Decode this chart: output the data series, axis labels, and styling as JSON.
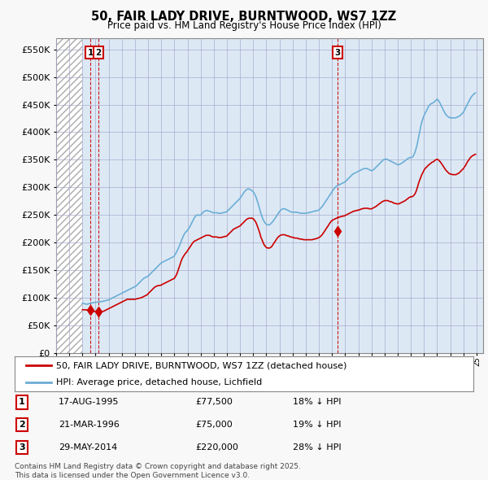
{
  "title": "50, FAIR LADY DRIVE, BURNTWOOD, WS7 1ZZ",
  "subtitle": "Price paid vs. HM Land Registry's House Price Index (HPI)",
  "ytick_values": [
    0,
    50000,
    100000,
    150000,
    200000,
    250000,
    300000,
    350000,
    400000,
    450000,
    500000,
    550000
  ],
  "ylim": [
    0,
    570000
  ],
  "xlim_start": 1993.0,
  "xlim_end": 2025.5,
  "hpi_color": "#6baed6",
  "price_color": "#cc0000",
  "background_color": "#f8f8f8",
  "plot_bg_color": "#dce9f5",
  "hatch_color": "#c0c8d0",
  "legend_label_price": "50, FAIR LADY DRIVE, BURNTWOOD, WS7 1ZZ (detached house)",
  "legend_label_hpi": "HPI: Average price, detached house, Lichfield",
  "transactions": [
    {
      "num": 1,
      "date": "17-AUG-1995",
      "year": 1995.62,
      "price": 77500,
      "pct": "18% ↓ HPI"
    },
    {
      "num": 2,
      "date": "21-MAR-1996",
      "year": 1996.22,
      "price": 75000,
      "pct": "19% ↓ HPI"
    },
    {
      "num": 3,
      "date": "29-MAY-2014",
      "year": 2014.41,
      "price": 220000,
      "pct": "28% ↓ HPI"
    }
  ],
  "footer": "Contains HM Land Registry data © Crown copyright and database right 2025.\nThis data is licensed under the Open Government Licence v3.0.",
  "hpi_data_x": [
    1995.0,
    1995.08,
    1995.17,
    1995.25,
    1995.33,
    1995.42,
    1995.5,
    1995.58,
    1995.67,
    1995.75,
    1995.83,
    1995.92,
    1996.0,
    1996.08,
    1996.17,
    1996.25,
    1996.33,
    1996.42,
    1996.5,
    1996.58,
    1996.67,
    1996.75,
    1996.83,
    1996.92,
    1997.0,
    1997.08,
    1997.17,
    1997.25,
    1997.33,
    1997.42,
    1997.5,
    1997.58,
    1997.67,
    1997.75,
    1997.83,
    1997.92,
    1998.0,
    1998.08,
    1998.17,
    1998.25,
    1998.33,
    1998.42,
    1998.5,
    1998.58,
    1998.67,
    1998.75,
    1998.83,
    1998.92,
    1999.0,
    1999.08,
    1999.17,
    1999.25,
    1999.33,
    1999.42,
    1999.5,
    1999.58,
    1999.67,
    1999.75,
    1999.83,
    1999.92,
    2000.0,
    2000.08,
    2000.17,
    2000.25,
    2000.33,
    2000.42,
    2000.5,
    2000.58,
    2000.67,
    2000.75,
    2000.83,
    2000.92,
    2001.0,
    2001.08,
    2001.17,
    2001.25,
    2001.33,
    2001.42,
    2001.5,
    2001.58,
    2001.67,
    2001.75,
    2001.83,
    2001.92,
    2002.0,
    2002.08,
    2002.17,
    2002.25,
    2002.33,
    2002.42,
    2002.5,
    2002.58,
    2002.67,
    2002.75,
    2002.83,
    2002.92,
    2003.0,
    2003.08,
    2003.17,
    2003.25,
    2003.33,
    2003.42,
    2003.5,
    2003.58,
    2003.67,
    2003.75,
    2003.83,
    2003.92,
    2004.0,
    2004.08,
    2004.17,
    2004.25,
    2004.33,
    2004.42,
    2004.5,
    2004.58,
    2004.67,
    2004.75,
    2004.83,
    2004.92,
    2005.0,
    2005.08,
    2005.17,
    2005.25,
    2005.33,
    2005.42,
    2005.5,
    2005.58,
    2005.67,
    2005.75,
    2005.83,
    2005.92,
    2006.0,
    2006.08,
    2006.17,
    2006.25,
    2006.33,
    2006.42,
    2006.5,
    2006.58,
    2006.67,
    2006.75,
    2006.83,
    2006.92,
    2007.0,
    2007.08,
    2007.17,
    2007.25,
    2007.33,
    2007.42,
    2007.5,
    2007.58,
    2007.67,
    2007.75,
    2007.83,
    2007.92,
    2008.0,
    2008.08,
    2008.17,
    2008.25,
    2008.33,
    2008.42,
    2008.5,
    2008.58,
    2008.67,
    2008.75,
    2008.83,
    2008.92,
    2009.0,
    2009.08,
    2009.17,
    2009.25,
    2009.33,
    2009.42,
    2009.5,
    2009.58,
    2009.67,
    2009.75,
    2009.83,
    2009.92,
    2010.0,
    2010.08,
    2010.17,
    2010.25,
    2010.33,
    2010.42,
    2010.5,
    2010.58,
    2010.67,
    2010.75,
    2010.83,
    2010.92,
    2011.0,
    2011.08,
    2011.17,
    2011.25,
    2011.33,
    2011.42,
    2011.5,
    2011.58,
    2011.67,
    2011.75,
    2011.83,
    2011.92,
    2012.0,
    2012.08,
    2012.17,
    2012.25,
    2012.33,
    2012.42,
    2012.5,
    2012.58,
    2012.67,
    2012.75,
    2012.83,
    2012.92,
    2013.0,
    2013.08,
    2013.17,
    2013.25,
    2013.33,
    2013.42,
    2013.5,
    2013.58,
    2013.67,
    2013.75,
    2013.83,
    2013.92,
    2014.0,
    2014.08,
    2014.17,
    2014.25,
    2014.33,
    2014.42,
    2014.5,
    2014.58,
    2014.67,
    2014.75,
    2014.83,
    2014.92,
    2015.0,
    2015.08,
    2015.17,
    2015.25,
    2015.33,
    2015.42,
    2015.5,
    2015.58,
    2015.67,
    2015.75,
    2015.83,
    2015.92,
    2016.0,
    2016.08,
    2016.17,
    2016.25,
    2016.33,
    2016.42,
    2016.5,
    2016.58,
    2016.67,
    2016.75,
    2016.83,
    2016.92,
    2017.0,
    2017.08,
    2017.17,
    2017.25,
    2017.33,
    2017.42,
    2017.5,
    2017.58,
    2017.67,
    2017.75,
    2017.83,
    2017.92,
    2018.0,
    2018.08,
    2018.17,
    2018.25,
    2018.33,
    2018.42,
    2018.5,
    2018.58,
    2018.67,
    2018.75,
    2018.83,
    2018.92,
    2019.0,
    2019.08,
    2019.17,
    2019.25,
    2019.33,
    2019.42,
    2019.5,
    2019.58,
    2019.67,
    2019.75,
    2019.83,
    2019.92,
    2020.0,
    2020.08,
    2020.17,
    2020.25,
    2020.33,
    2020.42,
    2020.5,
    2020.58,
    2020.67,
    2020.75,
    2020.83,
    2020.92,
    2021.0,
    2021.08,
    2021.17,
    2021.25,
    2021.33,
    2021.42,
    2021.5,
    2021.58,
    2021.67,
    2021.75,
    2021.83,
    2021.92,
    2022.0,
    2022.08,
    2022.17,
    2022.25,
    2022.33,
    2022.42,
    2022.5,
    2022.58,
    2022.67,
    2022.75,
    2022.83,
    2022.92,
    2023.0,
    2023.08,
    2023.17,
    2023.25,
    2023.33,
    2023.42,
    2023.5,
    2023.58,
    2023.67,
    2023.75,
    2023.83,
    2023.92,
    2024.0,
    2024.08,
    2024.17,
    2024.25,
    2024.33,
    2024.42,
    2024.5,
    2024.58,
    2024.67,
    2024.75,
    2024.83,
    2024.92
  ],
  "hpi_data_y": [
    90000,
    89500,
    89000,
    88500,
    88000,
    88500,
    89000,
    89500,
    90000,
    90500,
    91000,
    91200,
    91500,
    91800,
    92000,
    92200,
    92500,
    92800,
    93000,
    93500,
    94000,
    94500,
    95000,
    95500,
    96000,
    97000,
    98000,
    99000,
    100000,
    101000,
    102000,
    103000,
    104000,
    105000,
    106000,
    107000,
    108000,
    109000,
    110000,
    111000,
    112000,
    113000,
    114000,
    115000,
    116000,
    117000,
    118000,
    119000,
    120000,
    121000,
    123000,
    125000,
    127000,
    129000,
    131000,
    133000,
    135000,
    136000,
    137000,
    138000,
    139000,
    141000,
    143000,
    145000,
    147000,
    149000,
    151000,
    153000,
    155000,
    157000,
    159000,
    161000,
    163000,
    164000,
    165000,
    166000,
    167000,
    168000,
    169000,
    170000,
    171000,
    172000,
    173000,
    174000,
    176000,
    179000,
    183000,
    187000,
    191000,
    196000,
    201000,
    206000,
    211000,
    215000,
    218000,
    220000,
    222000,
    225000,
    228000,
    232000,
    236000,
    240000,
    244000,
    247000,
    249000,
    250000,
    250000,
    249000,
    250000,
    252000,
    254000,
    256000,
    257000,
    258000,
    258000,
    257000,
    257000,
    256000,
    255000,
    254000,
    254000,
    254000,
    254000,
    254000,
    253000,
    253000,
    253000,
    253000,
    254000,
    254000,
    255000,
    255000,
    256000,
    258000,
    260000,
    262000,
    264000,
    266000,
    268000,
    270000,
    272000,
    274000,
    276000,
    278000,
    280000,
    283000,
    286000,
    289000,
    292000,
    294000,
    296000,
    297000,
    297000,
    296000,
    295000,
    294000,
    292000,
    289000,
    285000,
    280000,
    274000,
    267000,
    260000,
    253000,
    247000,
    242000,
    238000,
    235000,
    233000,
    232000,
    232000,
    232000,
    234000,
    236000,
    238000,
    241000,
    244000,
    247000,
    250000,
    253000,
    256000,
    258000,
    260000,
    261000,
    261000,
    261000,
    260000,
    259000,
    258000,
    257000,
    256000,
    255000,
    255000,
    255000,
    255000,
    255000,
    255000,
    254000,
    254000,
    253000,
    253000,
    253000,
    253000,
    253000,
    253000,
    253000,
    254000,
    254000,
    255000,
    255000,
    256000,
    256000,
    257000,
    257000,
    258000,
    258000,
    259000,
    261000,
    263000,
    265000,
    268000,
    271000,
    274000,
    277000,
    280000,
    283000,
    286000,
    289000,
    292000,
    295000,
    298000,
    300000,
    302000,
    303000,
    304000,
    305000,
    306000,
    307000,
    308000,
    309000,
    310000,
    312000,
    314000,
    316000,
    318000,
    320000,
    322000,
    324000,
    325000,
    326000,
    327000,
    328000,
    329000,
    330000,
    331000,
    332000,
    333000,
    334000,
    334000,
    334000,
    334000,
    333000,
    332000,
    331000,
    330000,
    331000,
    332000,
    334000,
    336000,
    338000,
    340000,
    342000,
    344000,
    346000,
    348000,
    350000,
    351000,
    351000,
    351000,
    350000,
    349000,
    348000,
    347000,
    346000,
    345000,
    344000,
    343000,
    342000,
    341000,
    341000,
    342000,
    343000,
    344000,
    346000,
    347000,
    349000,
    350000,
    352000,
    353000,
    354000,
    354000,
    354000,
    356000,
    360000,
    365000,
    372000,
    380000,
    390000,
    400000,
    410000,
    418000,
    425000,
    430000,
    434000,
    438000,
    442000,
    446000,
    449000,
    451000,
    452000,
    453000,
    454000,
    456000,
    458000,
    460000,
    458000,
    455000,
    451000,
    447000,
    443000,
    439000,
    435000,
    432000,
    430000,
    428000,
    427000,
    426000,
    426000,
    426000,
    426000,
    426000,
    426000,
    427000,
    428000,
    429000,
    430000,
    432000,
    434000,
    436000,
    440000,
    444000,
    448000,
    452000,
    456000,
    460000,
    463000,
    466000,
    468000,
    470000,
    471000
  ],
  "price_data_x": [
    1995.0,
    1995.08,
    1995.17,
    1995.25,
    1995.33,
    1995.42,
    1995.5,
    1995.58,
    1995.67,
    1995.75,
    1995.83,
    1995.92,
    1996.0,
    1996.08,
    1996.17,
    1996.25,
    1996.33,
    1996.42,
    1996.5,
    1996.58,
    1996.67,
    1996.75,
    1996.83,
    1996.92,
    1997.0,
    1997.08,
    1997.17,
    1997.25,
    1997.33,
    1997.42,
    1997.5,
    1997.58,
    1997.67,
    1997.75,
    1997.83,
    1997.92,
    1998.0,
    1998.08,
    1998.17,
    1998.25,
    1998.33,
    1998.42,
    1998.5,
    1998.58,
    1998.67,
    1998.75,
    1998.83,
    1998.92,
    1999.0,
    1999.08,
    1999.17,
    1999.25,
    1999.33,
    1999.42,
    1999.5,
    1999.58,
    1999.67,
    1999.75,
    1999.83,
    1999.92,
    2000.0,
    2000.08,
    2000.17,
    2000.25,
    2000.33,
    2000.42,
    2000.5,
    2000.58,
    2000.67,
    2000.75,
    2000.83,
    2000.92,
    2001.0,
    2001.08,
    2001.17,
    2001.25,
    2001.33,
    2001.42,
    2001.5,
    2001.58,
    2001.67,
    2001.75,
    2001.83,
    2001.92,
    2002.0,
    2002.08,
    2002.17,
    2002.25,
    2002.33,
    2002.42,
    2002.5,
    2002.58,
    2002.67,
    2002.75,
    2002.83,
    2002.92,
    2003.0,
    2003.08,
    2003.17,
    2003.25,
    2003.33,
    2003.42,
    2003.5,
    2003.58,
    2003.67,
    2003.75,
    2003.83,
    2003.92,
    2004.0,
    2004.08,
    2004.17,
    2004.25,
    2004.33,
    2004.42,
    2004.5,
    2004.58,
    2004.67,
    2004.75,
    2004.83,
    2004.92,
    2005.0,
    2005.08,
    2005.17,
    2005.25,
    2005.33,
    2005.42,
    2005.5,
    2005.58,
    2005.67,
    2005.75,
    2005.83,
    2005.92,
    2006.0,
    2006.08,
    2006.17,
    2006.25,
    2006.33,
    2006.42,
    2006.5,
    2006.58,
    2006.67,
    2006.75,
    2006.83,
    2006.92,
    2007.0,
    2007.08,
    2007.17,
    2007.25,
    2007.33,
    2007.42,
    2007.5,
    2007.58,
    2007.67,
    2007.75,
    2007.83,
    2007.92,
    2008.0,
    2008.08,
    2008.17,
    2008.25,
    2008.33,
    2008.42,
    2008.5,
    2008.58,
    2008.67,
    2008.75,
    2008.83,
    2008.92,
    2009.0,
    2009.08,
    2009.17,
    2009.25,
    2009.33,
    2009.42,
    2009.5,
    2009.58,
    2009.67,
    2009.75,
    2009.83,
    2009.92,
    2010.0,
    2010.08,
    2010.17,
    2010.25,
    2010.33,
    2010.42,
    2010.5,
    2010.58,
    2010.67,
    2010.75,
    2010.83,
    2010.92,
    2011.0,
    2011.08,
    2011.17,
    2011.25,
    2011.33,
    2011.42,
    2011.5,
    2011.58,
    2011.67,
    2011.75,
    2011.83,
    2011.92,
    2012.0,
    2012.08,
    2012.17,
    2012.25,
    2012.33,
    2012.42,
    2012.5,
    2012.58,
    2012.67,
    2012.75,
    2012.83,
    2012.92,
    2013.0,
    2013.08,
    2013.17,
    2013.25,
    2013.33,
    2013.42,
    2013.5,
    2013.58,
    2013.67,
    2013.75,
    2013.83,
    2013.92,
    2014.0,
    2014.08,
    2014.17,
    2014.25,
    2014.33,
    2014.42,
    2014.5,
    2014.58,
    2014.67,
    2014.75,
    2014.83,
    2014.92,
    2015.0,
    2015.08,
    2015.17,
    2015.25,
    2015.33,
    2015.42,
    2015.5,
    2015.58,
    2015.67,
    2015.75,
    2015.83,
    2015.92,
    2016.0,
    2016.08,
    2016.17,
    2016.25,
    2016.33,
    2016.42,
    2016.5,
    2016.58,
    2016.67,
    2016.75,
    2016.83,
    2016.92,
    2017.0,
    2017.08,
    2017.17,
    2017.25,
    2017.33,
    2017.42,
    2017.5,
    2017.58,
    2017.67,
    2017.75,
    2017.83,
    2017.92,
    2018.0,
    2018.08,
    2018.17,
    2018.25,
    2018.33,
    2018.42,
    2018.5,
    2018.58,
    2018.67,
    2018.75,
    2018.83,
    2018.92,
    2019.0,
    2019.08,
    2019.17,
    2019.25,
    2019.33,
    2019.42,
    2019.5,
    2019.58,
    2019.67,
    2019.75,
    2019.83,
    2019.92,
    2020.0,
    2020.08,
    2020.17,
    2020.25,
    2020.33,
    2020.42,
    2020.5,
    2020.58,
    2020.67,
    2020.75,
    2020.83,
    2020.92,
    2021.0,
    2021.08,
    2021.17,
    2021.25,
    2021.33,
    2021.42,
    2021.5,
    2021.58,
    2021.67,
    2021.75,
    2021.83,
    2021.92,
    2022.0,
    2022.08,
    2022.17,
    2022.25,
    2022.33,
    2022.42,
    2022.5,
    2022.58,
    2022.67,
    2022.75,
    2022.83,
    2022.92,
    2023.0,
    2023.08,
    2023.17,
    2023.25,
    2023.33,
    2023.42,
    2023.5,
    2023.58,
    2023.67,
    2023.75,
    2023.83,
    2023.92,
    2024.0,
    2024.08,
    2024.17,
    2024.25,
    2024.33,
    2024.42,
    2024.5,
    2024.58,
    2024.67,
    2024.75,
    2024.83,
    2024.92
  ],
  "price_data_y": [
    78000,
    78000,
    78000,
    78000,
    77500,
    77500,
    77500,
    77500,
    75000,
    75000,
    75000,
    75000,
    75000,
    75000,
    75000,
    75000,
    75000,
    75000,
    75000,
    75000,
    76000,
    77000,
    78000,
    79000,
    80000,
    81000,
    82000,
    83000,
    84000,
    85000,
    86000,
    87000,
    88000,
    89000,
    90000,
    91000,
    92000,
    93000,
    94000,
    95000,
    96000,
    97000,
    97000,
    97000,
    97000,
    97000,
    97000,
    97000,
    97000,
    97500,
    98000,
    98500,
    99000,
    99500,
    100000,
    101000,
    102000,
    103000,
    104000,
    105000,
    107000,
    109000,
    111000,
    113000,
    115000,
    117000,
    119000,
    120000,
    121000,
    122000,
    122000,
    122000,
    123000,
    124000,
    125000,
    126000,
    127000,
    128000,
    129000,
    130000,
    131000,
    132000,
    133000,
    134000,
    135000,
    138000,
    142000,
    147000,
    153000,
    159000,
    165000,
    170000,
    174000,
    177000,
    180000,
    182000,
    185000,
    188000,
    191000,
    194000,
    197000,
    200000,
    202000,
    203000,
    204000,
    205000,
    206000,
    207000,
    208000,
    209000,
    210000,
    211000,
    212000,
    213000,
    213000,
    213000,
    213000,
    212000,
    211000,
    210000,
    210000,
    210000,
    210000,
    210000,
    209000,
    209000,
    209000,
    209000,
    210000,
    210000,
    211000,
    211000,
    212000,
    214000,
    216000,
    218000,
    220000,
    222000,
    224000,
    225000,
    226000,
    227000,
    228000,
    229000,
    230000,
    232000,
    234000,
    236000,
    238000,
    240000,
    242000,
    243000,
    244000,
    244000,
    244000,
    244000,
    243000,
    241000,
    238000,
    234000,
    229000,
    223000,
    217000,
    210000,
    205000,
    200000,
    196000,
    193000,
    191000,
    190000,
    190000,
    190000,
    191000,
    193000,
    196000,
    199000,
    202000,
    205000,
    208000,
    210000,
    212000,
    213000,
    214000,
    214000,
    214000,
    214000,
    213000,
    212000,
    212000,
    211000,
    210000,
    210000,
    209000,
    209000,
    208000,
    208000,
    208000,
    207000,
    207000,
    206000,
    206000,
    206000,
    205000,
    205000,
    205000,
    205000,
    205000,
    205000,
    205000,
    205000,
    205000,
    206000,
    206000,
    207000,
    207000,
    208000,
    209000,
    210000,
    212000,
    214000,
    217000,
    220000,
    223000,
    226000,
    229000,
    232000,
    235000,
    238000,
    240000,
    241000,
    242000,
    243000,
    244000,
    245000,
    246000,
    246000,
    247000,
    247000,
    248000,
    248000,
    249000,
    250000,
    251000,
    252000,
    253000,
    254000,
    255000,
    256000,
    257000,
    257000,
    258000,
    258000,
    259000,
    259000,
    260000,
    261000,
    261000,
    262000,
    262000,
    262000,
    262000,
    262000,
    261000,
    261000,
    261000,
    262000,
    263000,
    264000,
    265000,
    267000,
    268000,
    270000,
    271000,
    273000,
    274000,
    275000,
    276000,
    276000,
    276000,
    276000,
    275000,
    274000,
    274000,
    273000,
    272000,
    271000,
    271000,
    270000,
    270000,
    270000,
    271000,
    272000,
    273000,
    274000,
    275000,
    276000,
    278000,
    279000,
    281000,
    282000,
    283000,
    283000,
    284000,
    286000,
    289000,
    294000,
    300000,
    307000,
    313000,
    318000,
    323000,
    327000,
    331000,
    334000,
    336000,
    338000,
    340000,
    342000,
    343000,
    345000,
    346000,
    347000,
    349000,
    350000,
    351000,
    350000,
    348000,
    346000,
    343000,
    340000,
    337000,
    334000,
    331000,
    329000,
    327000,
    325000,
    324000,
    324000,
    323000,
    323000,
    323000,
    323000,
    324000,
    325000,
    326000,
    328000,
    330000,
    332000,
    334000,
    337000,
    340000,
    344000,
    347000,
    350000,
    353000,
    355000,
    357000,
    358000,
    359000,
    360000
  ]
}
